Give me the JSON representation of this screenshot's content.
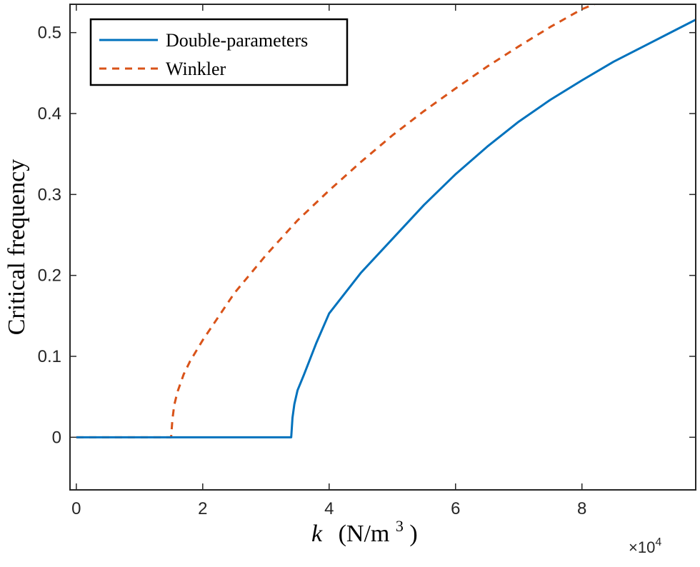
{
  "chart_data": {
    "type": "line",
    "ylabel": "Critical frequency",
    "xlabel_var": "k",
    "xlabel_unit": "(N/m",
    "xlabel_unit_sup": "3",
    "xlabel_unit_close": ")",
    "x_exponent_times": "×10",
    "x_exponent_power": "4",
    "xlim": [
      -0.1,
      9.8
    ],
    "ylim": [
      -0.065,
      0.535
    ],
    "x_ticks": [
      0,
      2,
      4,
      6,
      8
    ],
    "x_tick_labels": [
      "0",
      "2",
      "4",
      "6",
      "8"
    ],
    "y_ticks": [
      0,
      0.1,
      0.2,
      0.3,
      0.4,
      0.5
    ],
    "y_tick_labels": [
      "0",
      "0.1",
      "0.2",
      "0.3",
      "0.4",
      "0.5"
    ],
    "legend_position": "top-left",
    "series": [
      {
        "name": "Double-parameters",
        "color": "#0072BD",
        "style": "solid",
        "x": [
          0,
          1,
          2,
          3,
          3.4,
          3.42,
          3.45,
          3.5,
          3.6,
          3.8,
          4.0,
          4.5,
          5.0,
          5.5,
          6.0,
          6.5,
          7.0,
          7.5,
          8.0,
          8.5,
          9.0,
          9.5,
          9.8
        ],
        "y": [
          0,
          0,
          0,
          0,
          0,
          0.024,
          0.041,
          0.058,
          0.077,
          0.117,
          0.153,
          0.203,
          0.245,
          0.287,
          0.325,
          0.359,
          0.39,
          0.417,
          0.441,
          0.464,
          0.484,
          0.504,
          0.516
        ]
      },
      {
        "name": "Winkler",
        "color": "#D95319",
        "style": "dashed",
        "x": [
          0,
          0.5,
          1.0,
          1.5,
          1.52,
          1.55,
          1.6,
          1.7,
          1.8,
          2.0,
          2.5,
          3.0,
          3.5,
          4.0,
          4.5,
          5.0,
          5.5,
          6.0,
          6.5,
          7.0,
          7.5,
          8.0,
          8.35
        ],
        "y": [
          0,
          0,
          0,
          0,
          0.022,
          0.04,
          0.056,
          0.078,
          0.094,
          0.12,
          0.178,
          0.225,
          0.268,
          0.305,
          0.34,
          0.373,
          0.403,
          0.431,
          0.458,
          0.483,
          0.507,
          0.529,
          0.54
        ]
      }
    ]
  }
}
